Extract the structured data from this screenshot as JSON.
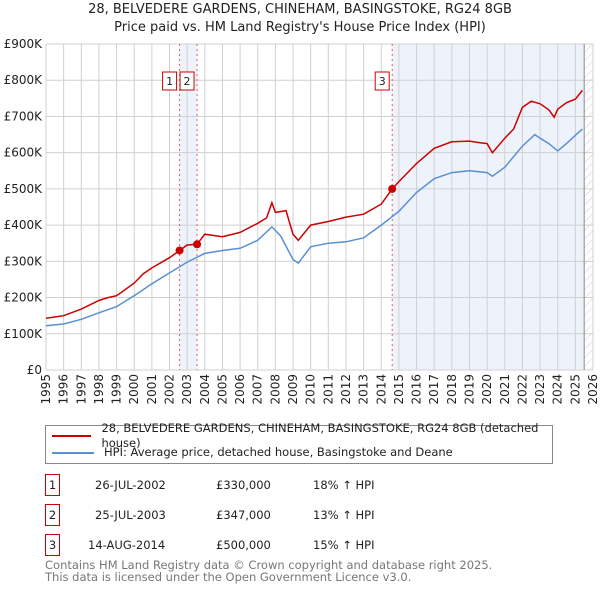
{
  "chart_data": {
    "type": "line",
    "title": "28, BELVEDERE GARDENS, CHINEHAM, BASINGSTOKE, RG24 8GB",
    "subtitle": "Price paid vs. HM Land Registry's House Price Index (HPI)",
    "xlim": [
      1995,
      2026
    ],
    "ylim": [
      0,
      900000
    ],
    "x_ticks": [
      "1995",
      "1996",
      "1997",
      "1998",
      "1999",
      "2000",
      "2001",
      "2002",
      "2003",
      "2004",
      "2005",
      "2006",
      "2007",
      "2008",
      "2009",
      "2010",
      "2011",
      "2012",
      "2013",
      "2014",
      "2015",
      "2016",
      "2017",
      "2018",
      "2019",
      "2020",
      "2021",
      "2022",
      "2023",
      "2024",
      "2025",
      "2026"
    ],
    "y_ticks": [
      {
        "v": 0,
        "label": "£0"
      },
      {
        "v": 100000,
        "label": "£100K"
      },
      {
        "v": 200000,
        "label": "£200K"
      },
      {
        "v": 300000,
        "label": "£300K"
      },
      {
        "v": 400000,
        "label": "£400K"
      },
      {
        "v": 500000,
        "label": "£500K"
      },
      {
        "v": 600000,
        "label": "£600K"
      },
      {
        "v": 700000,
        "label": "£700K"
      },
      {
        "v": 800000,
        "label": "£800K"
      },
      {
        "v": 900000,
        "label": "£900K"
      }
    ],
    "grid": true,
    "series": [
      {
        "name": "28, BELVEDERE GARDENS, CHINEHAM, BASINGSTOKE, RG24 8GB (detached house)",
        "color": "#cc0000",
        "x": [
          1995,
          1996,
          1997,
          1998,
          1998.5,
          1999,
          2000,
          2000.5,
          2001,
          2002,
          2002.57,
          2003,
          2003.56,
          2004,
          2005,
          2006,
          2007,
          2007.5,
          2007.8,
          2008,
          2008.6,
          2009,
          2009.3,
          2010,
          2011,
          2012,
          2013,
          2014,
          2014.62,
          2015,
          2016,
          2017,
          2018,
          2019,
          2019.5,
          2020,
          2020.3,
          2021,
          2021.5,
          2022,
          2022.5,
          2023,
          2023.5,
          2023.8,
          2024,
          2024.5,
          2025,
          2025.4
        ],
        "y": [
          143000,
          150000,
          168000,
          192000,
          200000,
          205000,
          240000,
          265000,
          282000,
          310000,
          330000,
          345000,
          347000,
          375000,
          368000,
          380000,
          405000,
          420000,
          462000,
          435000,
          440000,
          375000,
          358000,
          400000,
          410000,
          422000,
          430000,
          458000,
          500000,
          520000,
          570000,
          612000,
          630000,
          632000,
          628000,
          625000,
          600000,
          640000,
          665000,
          725000,
          742000,
          735000,
          718000,
          698000,
          720000,
          738000,
          748000,
          772000
        ]
      },
      {
        "name": "HPI: Average price, detached house, Basingstoke and Deane",
        "color": "#5b8fd4",
        "x": [
          1995,
          1996,
          1997,
          1998,
          1999,
          2000,
          2001,
          2002,
          2003,
          2004,
          2005,
          2006,
          2007,
          2007.8,
          2008.3,
          2009,
          2009.3,
          2010,
          2011,
          2012,
          2013,
          2014,
          2015,
          2016,
          2017,
          2018,
          2019,
          2020,
          2020.3,
          2021,
          2022,
          2022.7,
          2023,
          2023.5,
          2024,
          2024.5,
          2025,
          2025.4
        ],
        "y": [
          122000,
          127000,
          140000,
          158000,
          175000,
          205000,
          238000,
          268000,
          298000,
          322000,
          330000,
          336000,
          358000,
          395000,
          370000,
          305000,
          295000,
          340000,
          350000,
          354000,
          365000,
          400000,
          438000,
          490000,
          528000,
          545000,
          550000,
          545000,
          535000,
          560000,
          618000,
          650000,
          640000,
          625000,
          605000,
          625000,
          648000,
          665000
        ]
      }
    ],
    "sales": [
      {
        "label": "1",
        "x": 2002.57,
        "y": 330000
      },
      {
        "label": "2",
        "x": 2003.56,
        "y": 347000
      },
      {
        "label": "3",
        "x": 2014.62,
        "y": 500000
      }
    ],
    "shaded_ranges": [
      [
        2002.57,
        2003.56
      ],
      [
        2014.62,
        2025.5
      ]
    ],
    "future_hatch_from": 2025.5
  },
  "legend": {
    "red": "28, BELVEDERE GARDENS, CHINEHAM, BASINGSTOKE, RG24 8GB (detached house)",
    "blue": "HPI: Average price, detached house, Basingstoke and Deane"
  },
  "table": [
    {
      "num": "1",
      "date": "26-JUL-2002",
      "price": "£330,000",
      "hpi": "18% ↑ HPI"
    },
    {
      "num": "2",
      "date": "25-JUL-2003",
      "price": "£347,000",
      "hpi": "13% ↑ HPI"
    },
    {
      "num": "3",
      "date": "14-AUG-2014",
      "price": "£500,000",
      "hpi": "15% ↑ HPI"
    }
  ],
  "footer": {
    "line1": "Contains HM Land Registry data © Crown copyright and database right 2025.",
    "line2": "This data is licensed under the Open Government Licence v3.0."
  }
}
